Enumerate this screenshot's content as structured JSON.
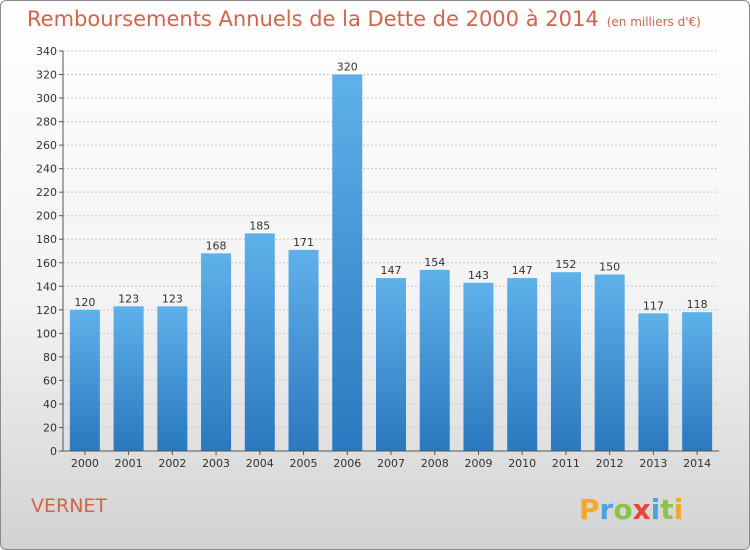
{
  "title": "Remboursements Annuels de la Dette de 2000 à 2014",
  "unit": "(en milliers d'€)",
  "commune": "VERNET",
  "brand": "Proxiti",
  "colors": {
    "bar_light": "#5fb1ea",
    "bar_dark": "#2a78bf",
    "title": "#d2644a"
  },
  "chart_data": {
    "type": "bar",
    "title": "Remboursements Annuels de la Dette de 2000 à 2014",
    "categories": [
      "2000",
      "2001",
      "2002",
      "2003",
      "2004",
      "2005",
      "2006",
      "2007",
      "2008",
      "2009",
      "2010",
      "2011",
      "2012",
      "2013",
      "2014"
    ],
    "values": [
      120,
      123,
      123,
      168,
      185,
      171,
      320,
      147,
      154,
      143,
      147,
      152,
      150,
      117,
      118
    ],
    "ylim": [
      0,
      340
    ],
    "yticks": [
      0,
      20,
      40,
      60,
      80,
      100,
      120,
      140,
      160,
      180,
      200,
      220,
      240,
      260,
      280,
      300,
      320,
      340
    ],
    "grid": true,
    "legend": "none"
  }
}
